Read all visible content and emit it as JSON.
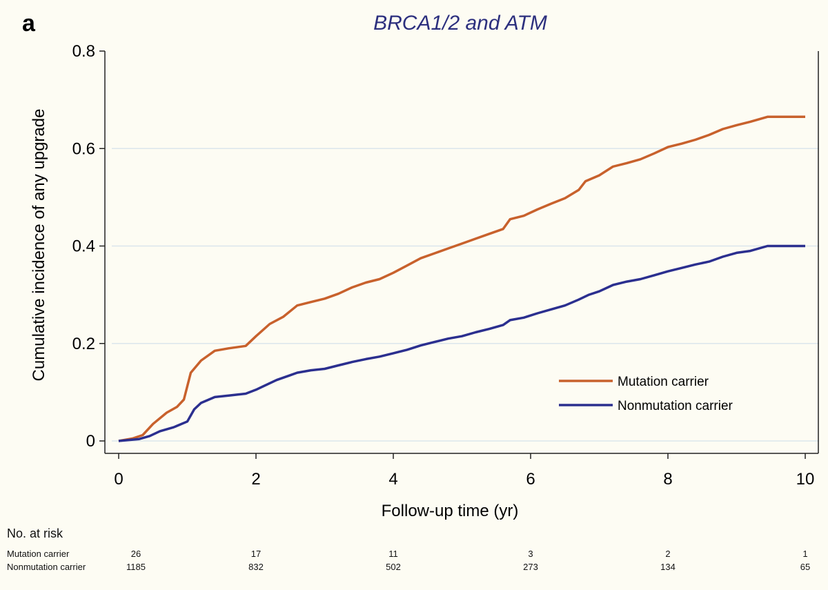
{
  "panel_letter": "a",
  "chart_data": {
    "type": "line",
    "title": "BRCA1/2 and ATM",
    "xlabel": "Follow-up time (yr)",
    "ylabel": "Cumulative incidence of any upgrade",
    "xlim": [
      0,
      10
    ],
    "ylim": [
      0,
      0.8
    ],
    "x_ticks": [
      0,
      2,
      4,
      6,
      8,
      10
    ],
    "y_ticks": [
      0,
      0.2,
      0.4,
      0.6,
      0.8
    ],
    "y_tick_labels": [
      "0",
      "0.2",
      "0.4",
      "0.6",
      "0.8"
    ],
    "grid": "horizontal",
    "legend_position": "right",
    "series": [
      {
        "name": "Mutation carrier",
        "color": "#c8612c",
        "points": [
          [
            0,
            0
          ],
          [
            0.2,
            0.005
          ],
          [
            0.35,
            0.012
          ],
          [
            0.5,
            0.035
          ],
          [
            0.7,
            0.058
          ],
          [
            0.85,
            0.07
          ],
          [
            0.95,
            0.085
          ],
          [
            1.05,
            0.14
          ],
          [
            1.2,
            0.165
          ],
          [
            1.4,
            0.185
          ],
          [
            1.6,
            0.19
          ],
          [
            1.85,
            0.195
          ],
          [
            2.0,
            0.215
          ],
          [
            2.2,
            0.24
          ],
          [
            2.4,
            0.255
          ],
          [
            2.6,
            0.278
          ],
          [
            2.8,
            0.285
          ],
          [
            3.0,
            0.292
          ],
          [
            3.2,
            0.302
          ],
          [
            3.4,
            0.315
          ],
          [
            3.6,
            0.325
          ],
          [
            3.8,
            0.332
          ],
          [
            4.0,
            0.345
          ],
          [
            4.2,
            0.36
          ],
          [
            4.4,
            0.375
          ],
          [
            4.6,
            0.385
          ],
          [
            4.8,
            0.395
          ],
          [
            5.0,
            0.405
          ],
          [
            5.2,
            0.415
          ],
          [
            5.4,
            0.425
          ],
          [
            5.6,
            0.435
          ],
          [
            5.7,
            0.455
          ],
          [
            5.9,
            0.462
          ],
          [
            6.1,
            0.475
          ],
          [
            6.3,
            0.487
          ],
          [
            6.5,
            0.498
          ],
          [
            6.7,
            0.515
          ],
          [
            6.8,
            0.533
          ],
          [
            7.0,
            0.545
          ],
          [
            7.2,
            0.563
          ],
          [
            7.4,
            0.57
          ],
          [
            7.6,
            0.578
          ],
          [
            7.8,
            0.59
          ],
          [
            8.0,
            0.603
          ],
          [
            8.2,
            0.61
          ],
          [
            8.4,
            0.618
          ],
          [
            8.6,
            0.628
          ],
          [
            8.8,
            0.64
          ],
          [
            9.0,
            0.648
          ],
          [
            9.2,
            0.655
          ],
          [
            9.45,
            0.665
          ],
          [
            10.0,
            0.665
          ]
        ]
      },
      {
        "name": "Nonmutation carrier",
        "color": "#2b2f8f",
        "points": [
          [
            0,
            0
          ],
          [
            0.3,
            0.004
          ],
          [
            0.45,
            0.01
          ],
          [
            0.6,
            0.02
          ],
          [
            0.8,
            0.028
          ],
          [
            1.0,
            0.04
          ],
          [
            1.1,
            0.065
          ],
          [
            1.2,
            0.078
          ],
          [
            1.4,
            0.09
          ],
          [
            1.6,
            0.093
          ],
          [
            1.85,
            0.097
          ],
          [
            2.0,
            0.105
          ],
          [
            2.3,
            0.125
          ],
          [
            2.5,
            0.135
          ],
          [
            2.6,
            0.14
          ],
          [
            2.8,
            0.145
          ],
          [
            3.0,
            0.148
          ],
          [
            3.2,
            0.155
          ],
          [
            3.4,
            0.162
          ],
          [
            3.6,
            0.168
          ],
          [
            3.8,
            0.173
          ],
          [
            4.0,
            0.18
          ],
          [
            4.2,
            0.187
          ],
          [
            4.4,
            0.196
          ],
          [
            4.6,
            0.203
          ],
          [
            4.8,
            0.21
          ],
          [
            5.0,
            0.215
          ],
          [
            5.2,
            0.223
          ],
          [
            5.4,
            0.23
          ],
          [
            5.6,
            0.238
          ],
          [
            5.7,
            0.248
          ],
          [
            5.9,
            0.253
          ],
          [
            6.1,
            0.262
          ],
          [
            6.3,
            0.27
          ],
          [
            6.5,
            0.278
          ],
          [
            6.7,
            0.29
          ],
          [
            6.85,
            0.3
          ],
          [
            7.0,
            0.307
          ],
          [
            7.2,
            0.32
          ],
          [
            7.4,
            0.327
          ],
          [
            7.6,
            0.332
          ],
          [
            7.8,
            0.34
          ],
          [
            8.0,
            0.348
          ],
          [
            8.2,
            0.355
          ],
          [
            8.4,
            0.362
          ],
          [
            8.6,
            0.368
          ],
          [
            8.8,
            0.378
          ],
          [
            9.0,
            0.386
          ],
          [
            9.2,
            0.39
          ],
          [
            9.45,
            0.4
          ],
          [
            10.0,
            0.4
          ]
        ]
      }
    ]
  },
  "risk_table": {
    "heading": "No. at risk",
    "times": [
      0,
      2,
      4,
      6,
      8,
      10
    ],
    "rows": [
      {
        "label": "Mutation carrier",
        "values": [
          "26",
          "17",
          "11",
          "3",
          "2",
          "1"
        ]
      },
      {
        "label": "Nonmutation carrier",
        "values": [
          "1185",
          "832",
          "502",
          "273",
          "134",
          "65"
        ]
      }
    ]
  }
}
